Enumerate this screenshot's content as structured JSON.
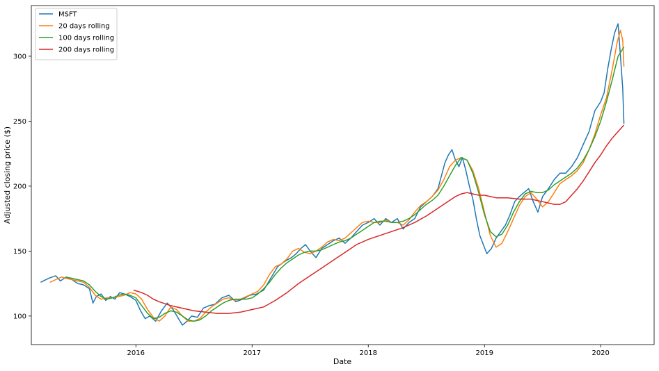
{
  "chart_data": {
    "type": "line",
    "title": "",
    "xlabel": "Date",
    "ylabel": "Adjusted closing price ($)",
    "x_ticks": [
      "2016",
      "2017",
      "2018",
      "2019",
      "2020"
    ],
    "y_ticks": [
      "100",
      "150",
      "200",
      "250",
      "300"
    ],
    "xlim": [
      2015.1,
      2020.46
    ],
    "ylim": [
      78,
      339
    ],
    "legend_location": "upper left",
    "grid": false,
    "series": [
      {
        "name": "MSFT",
        "color": "#1f77b4",
        "x": [
          2015.18,
          2015.25,
          2015.31,
          2015.35,
          2015.4,
          2015.45,
          2015.5,
          2015.55,
          2015.6,
          2015.63,
          2015.66,
          2015.7,
          2015.74,
          2015.78,
          2015.82,
          2015.86,
          2015.9,
          2015.95,
          2016.0,
          2016.04,
          2016.08,
          2016.12,
          2016.17,
          2016.22,
          2016.27,
          2016.32,
          2016.36,
          2016.4,
          2016.44,
          2016.48,
          2016.53,
          2016.58,
          2016.63,
          2016.68,
          2016.74,
          2016.8,
          2016.86,
          2016.92,
          2016.98,
          2017.04,
          2017.1,
          2017.16,
          2017.22,
          2017.28,
          2017.34,
          2017.38,
          2017.42,
          2017.46,
          2017.5,
          2017.55,
          2017.6,
          2017.65,
          2017.7,
          2017.75,
          2017.8,
          2017.85,
          2017.9,
          2017.95,
          2018.0,
          2018.05,
          2018.1,
          2018.15,
          2018.2,
          2018.25,
          2018.3,
          2018.35,
          2018.4,
          2018.45,
          2018.5,
          2018.55,
          2018.6,
          2018.63,
          2018.66,
          2018.69,
          2018.72,
          2018.75,
          2018.78,
          2018.81,
          2018.84,
          2018.87,
          2018.9,
          2018.93,
          2018.96,
          2018.99,
          2019.02,
          2019.06,
          2019.1,
          2019.14,
          2019.18,
          2019.22,
          2019.26,
          2019.3,
          2019.34,
          2019.38,
          2019.42,
          2019.46,
          2019.5,
          2019.55,
          2019.6,
          2019.65,
          2019.7,
          2019.75,
          2019.8,
          2019.85,
          2019.9,
          2019.95,
          2020.0,
          2020.03,
          2020.06,
          2020.09,
          2020.12,
          2020.15,
          2020.17,
          2020.19,
          2020.2
        ],
        "y": [
          126,
          129,
          131,
          127,
          130,
          128,
          125,
          124,
          121,
          110,
          115,
          117,
          112,
          115,
          113,
          118,
          117,
          115,
          112,
          104,
          98,
          100,
          96,
          104,
          110,
          105,
          99,
          93,
          96,
          100,
          99,
          106,
          108,
          109,
          114,
          116,
          111,
          113,
          116,
          117,
          120,
          129,
          138,
          142,
          145,
          148,
          152,
          155,
          150,
          145,
          152,
          155,
          158,
          160,
          156,
          160,
          165,
          170,
          172,
          175,
          170,
          175,
          172,
          175,
          167,
          172,
          175,
          184,
          188,
          192,
          198,
          208,
          218,
          224,
          228,
          220,
          215,
          222,
          212,
          200,
          190,
          175,
          162,
          155,
          148,
          152,
          160,
          165,
          170,
          178,
          188,
          192,
          195,
          198,
          188,
          180,
          192,
          198,
          205,
          210,
          210,
          215,
          222,
          232,
          242,
          258,
          265,
          272,
          290,
          305,
          318,
          325,
          300,
          275,
          248
        ]
      },
      {
        "name": "20 days rolling",
        "color": "#ff7f0e",
        "x": [
          2015.26,
          2015.31,
          2015.36,
          2015.4,
          2015.45,
          2015.5,
          2015.55,
          2015.6,
          2015.65,
          2015.7,
          2015.75,
          2015.8,
          2015.85,
          2015.9,
          2015.95,
          2016.0,
          2016.05,
          2016.1,
          2016.15,
          2016.2,
          2016.25,
          2016.3,
          2016.35,
          2016.4,
          2016.45,
          2016.5,
          2016.55,
          2016.6,
          2016.65,
          2016.7,
          2016.75,
          2016.8,
          2016.85,
          2016.9,
          2016.95,
          2017.0,
          2017.05,
          2017.1,
          2017.15,
          2017.2,
          2017.25,
          2017.3,
          2017.35,
          2017.4,
          2017.45,
          2017.5,
          2017.55,
          2017.6,
          2017.65,
          2017.7,
          2017.75,
          2017.8,
          2017.85,
          2017.9,
          2017.95,
          2018.0,
          2018.05,
          2018.1,
          2018.15,
          2018.2,
          2018.25,
          2018.3,
          2018.35,
          2018.4,
          2018.45,
          2018.5,
          2018.55,
          2018.6,
          2018.65,
          2018.7,
          2018.75,
          2018.8,
          2018.85,
          2018.9,
          2018.95,
          2019.0,
          2019.05,
          2019.1,
          2019.15,
          2019.2,
          2019.25,
          2019.3,
          2019.35,
          2019.4,
          2019.45,
          2019.5,
          2019.55,
          2019.6,
          2019.65,
          2019.7,
          2019.75,
          2019.8,
          2019.85,
          2019.9,
          2019.95,
          2020.0,
          2020.05,
          2020.1,
          2020.14,
          2020.17,
          2020.19,
          2020.2
        ],
        "y": [
          126,
          128,
          130,
          129,
          128,
          127,
          126,
          122,
          116,
          113,
          114,
          114,
          115,
          116,
          118,
          117,
          113,
          105,
          99,
          96,
          100,
          107,
          105,
          100,
          96,
          96,
          98,
          103,
          107,
          110,
          113,
          114,
          112,
          113,
          115,
          117,
          119,
          124,
          132,
          138,
          140,
          144,
          150,
          152,
          149,
          148,
          150,
          153,
          157,
          159,
          158,
          160,
          164,
          168,
          172,
          173,
          172,
          172,
          174,
          172,
          172,
          170,
          174,
          180,
          185,
          188,
          192,
          197,
          205,
          215,
          220,
          222,
          220,
          212,
          198,
          180,
          162,
          153,
          156,
          165,
          175,
          185,
          192,
          195,
          190,
          184,
          188,
          195,
          202,
          205,
          208,
          212,
          218,
          228,
          240,
          255,
          268,
          290,
          310,
          320,
          312,
          292
        ]
      },
      {
        "name": "100 days rolling",
        "color": "#2ca02c",
        "x": [
          2015.4,
          2015.45,
          2015.5,
          2015.55,
          2015.6,
          2015.65,
          2015.7,
          2015.75,
          2015.8,
          2015.85,
          2015.9,
          2015.95,
          2016.0,
          2016.05,
          2016.1,
          2016.15,
          2016.2,
          2016.25,
          2016.3,
          2016.35,
          2016.4,
          2016.45,
          2016.5,
          2016.55,
          2016.6,
          2016.65,
          2016.7,
          2016.75,
          2016.8,
          2016.85,
          2016.9,
          2016.95,
          2017.0,
          2017.05,
          2017.1,
          2017.15,
          2017.2,
          2017.25,
          2017.3,
          2017.35,
          2017.4,
          2017.45,
          2017.5,
          2017.55,
          2017.6,
          2017.65,
          2017.7,
          2017.75,
          2017.8,
          2017.85,
          2017.9,
          2017.95,
          2018.0,
          2018.05,
          2018.1,
          2018.15,
          2018.2,
          2018.25,
          2018.3,
          2018.35,
          2018.4,
          2018.45,
          2018.5,
          2018.55,
          2018.6,
          2018.65,
          2018.7,
          2018.75,
          2018.8,
          2018.85,
          2018.9,
          2018.95,
          2019.0,
          2019.05,
          2019.1,
          2019.15,
          2019.2,
          2019.25,
          2019.3,
          2019.35,
          2019.4,
          2019.45,
          2019.5,
          2019.55,
          2019.6,
          2019.65,
          2019.7,
          2019.75,
          2019.8,
          2019.85,
          2019.9,
          2019.95,
          2020.0,
          2020.05,
          2020.1,
          2020.15,
          2020.2
        ],
        "y": [
          130,
          129,
          128,
          127,
          124,
          119,
          115,
          113,
          114,
          116,
          117,
          116,
          114,
          108,
          102,
          98,
          99,
          102,
          104,
          103,
          100,
          97,
          96,
          97,
          100,
          104,
          107,
          110,
          112,
          113,
          113,
          113,
          114,
          117,
          121,
          126,
          132,
          137,
          141,
          144,
          147,
          149,
          150,
          150,
          151,
          153,
          155,
          157,
          158,
          160,
          163,
          166,
          169,
          172,
          173,
          173,
          172,
          172,
          173,
          175,
          178,
          182,
          186,
          189,
          193,
          200,
          208,
          216,
          222,
          220,
          210,
          195,
          178,
          165,
          161,
          163,
          170,
          180,
          188,
          194,
          196,
          195,
          195,
          197,
          201,
          204,
          207,
          210,
          214,
          220,
          228,
          238,
          250,
          265,
          282,
          300,
          307
        ]
      },
      {
        "name": "200 days rolling",
        "color": "#d62728",
        "x": [
          2015.98,
          2016.05,
          2016.1,
          2016.15,
          2016.2,
          2016.3,
          2016.4,
          2016.5,
          2016.6,
          2016.7,
          2016.8,
          2016.9,
          2017.0,
          2017.1,
          2017.2,
          2017.3,
          2017.4,
          2017.5,
          2017.6,
          2017.7,
          2017.8,
          2017.9,
          2018.0,
          2018.1,
          2018.2,
          2018.3,
          2018.4,
          2018.5,
          2018.6,
          2018.7,
          2018.75,
          2018.8,
          2018.85,
          2018.9,
          2018.95,
          2019.0,
          2019.05,
          2019.1,
          2019.15,
          2019.2,
          2019.3,
          2019.4,
          2019.5,
          2019.6,
          2019.65,
          2019.7,
          2019.75,
          2019.8,
          2019.85,
          2019.9,
          2019.95,
          2020.0,
          2020.05,
          2020.1,
          2020.15,
          2020.2
        ],
        "y": [
          120,
          118,
          116,
          113,
          111,
          108,
          106,
          104,
          103,
          102,
          102,
          103,
          105,
          107,
          112,
          118,
          125,
          131,
          137,
          143,
          149,
          155,
          159,
          162,
          165,
          168,
          172,
          177,
          183,
          189,
          192,
          194,
          195,
          194,
          193,
          193,
          192,
          191,
          191,
          191,
          190,
          190,
          188,
          186,
          186,
          188,
          193,
          198,
          204,
          211,
          218,
          224,
          231,
          237,
          242,
          247
        ]
      }
    ]
  }
}
